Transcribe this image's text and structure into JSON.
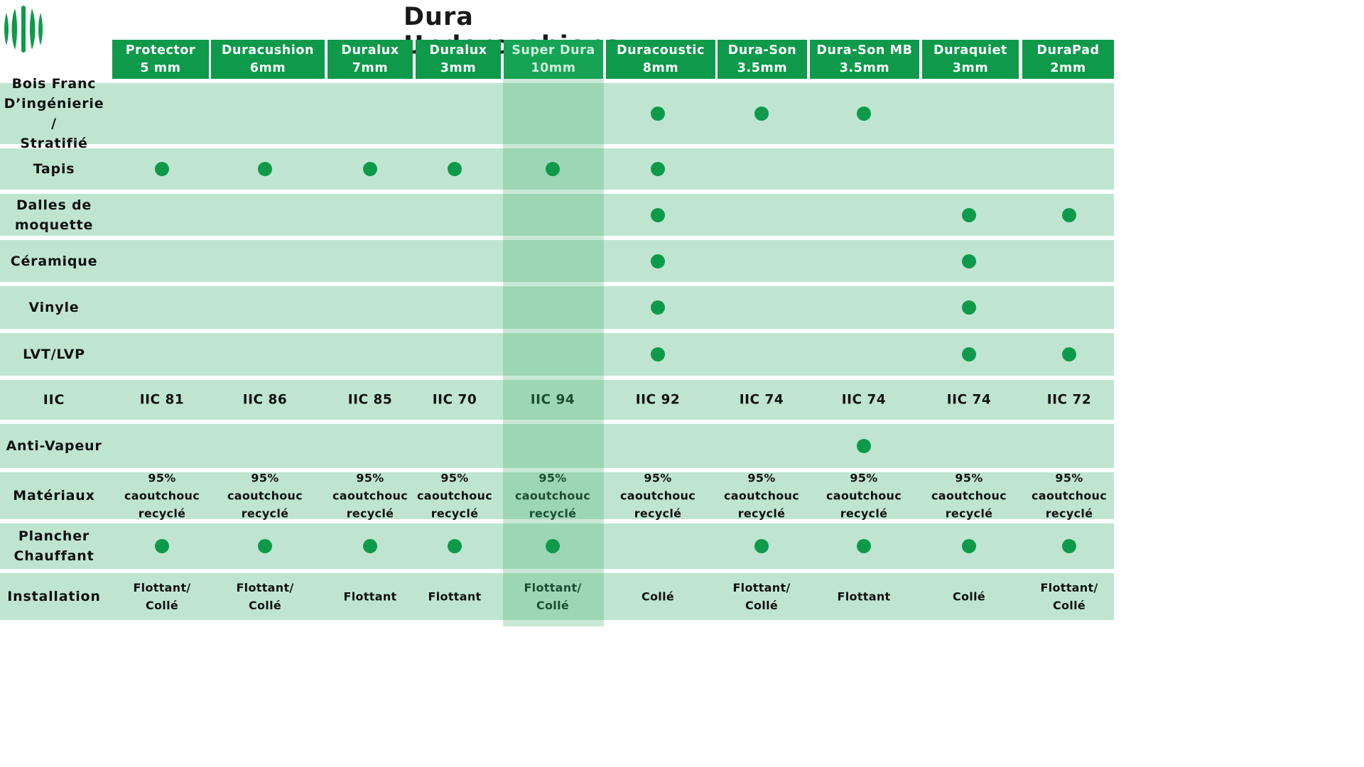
{
  "title": "Dura Undercushions",
  "colors": {
    "header_green": "#0e9a4a",
    "row_bg": "#bfe5d0",
    "dot": "#0e9a4a"
  },
  "logo_icon": "green-stripes-logo",
  "products": [
    {
      "name": "Protector",
      "spec": "5 mm"
    },
    {
      "name": "Duracushion",
      "spec": "6mm"
    },
    {
      "name": "Duralux",
      "spec": "7mm"
    },
    {
      "name": "Duralux",
      "spec": "3mm"
    },
    {
      "name": "Super Dura",
      "spec": "10mm"
    },
    {
      "name": "Duracoustic",
      "spec": "8mm"
    },
    {
      "name": "Dura-Son",
      "spec": "3.5mm"
    },
    {
      "name": "Dura-Son MB",
      "spec": "3.5mm"
    },
    {
      "name": "Duraquiet",
      "spec": "3mm"
    },
    {
      "name": "DuraPad",
      "spec": "2mm"
    }
  ],
  "rows": [
    {
      "label": [
        "Bois Franc",
        "D’ingénierie /",
        "Stratifié"
      ],
      "dots": [
        0,
        0,
        0,
        0,
        0,
        1,
        1,
        1,
        0,
        0
      ]
    },
    {
      "label": [
        "Tapis"
      ],
      "dots": [
        1,
        1,
        1,
        1,
        1,
        1,
        0,
        0,
        0,
        0
      ]
    },
    {
      "label": [
        "Dalles de",
        "moquette"
      ],
      "dots": [
        0,
        0,
        0,
        0,
        0,
        1,
        0,
        0,
        1,
        1
      ]
    },
    {
      "label": [
        "Céramique"
      ],
      "dots": [
        0,
        0,
        0,
        0,
        0,
        1,
        0,
        0,
        1,
        0
      ]
    },
    {
      "label": [
        "Vinyle"
      ],
      "dots": [
        0,
        0,
        0,
        0,
        0,
        1,
        0,
        0,
        1,
        0
      ]
    },
    {
      "label": [
        "LVT/LVP"
      ],
      "dots": [
        0,
        0,
        0,
        0,
        0,
        1,
        0,
        0,
        1,
        1
      ]
    },
    {
      "label": [
        "IIC"
      ],
      "values": [
        "IIC 81",
        "IIC 86",
        "IIC 85",
        "IIC 70",
        "IIC 94",
        "IIC 92",
        "IIC 74",
        "IIC 74",
        "IIC 74",
        "IIC 72"
      ]
    },
    {
      "label": [
        "Anti-Vapeur"
      ],
      "dots": [
        0,
        0,
        0,
        0,
        0,
        0,
        0,
        1,
        0,
        0
      ]
    },
    {
      "label": [
        "Matériaux"
      ],
      "values": [
        [
          "95%",
          "caoutchouc",
          "recyclé"
        ],
        [
          "95%",
          "caoutchouc",
          "recyclé"
        ],
        [
          "95%",
          "caoutchouc",
          "recyclé"
        ],
        [
          "95%",
          "caoutchouc",
          "recyclé"
        ],
        [
          "95%",
          "caoutchouc",
          "recyclé"
        ],
        [
          "95%",
          "caoutchouc",
          "recyclé"
        ],
        [
          "95%",
          "caoutchouc",
          "recyclé"
        ],
        [
          "95%",
          "caoutchouc",
          "recyclé"
        ],
        [
          "95%",
          "caoutchouc",
          "recyclé"
        ],
        [
          "95%",
          "caoutchouc",
          "recyclé"
        ]
      ]
    },
    {
      "label": [
        "Plancher",
        "Chauffant"
      ],
      "dots": [
        1,
        1,
        1,
        1,
        1,
        0,
        1,
        1,
        1,
        1
      ]
    },
    {
      "label": [
        "Installation"
      ],
      "values": [
        [
          "Flottant/",
          "Collé"
        ],
        [
          "Flottant/",
          "Collé"
        ],
        [
          "Flottant"
        ],
        [
          "Flottant"
        ],
        [
          "Flottant/",
          "Collé"
        ],
        [
          "Collé"
        ],
        [
          "Flottant/",
          "Collé"
        ],
        [
          "Flottant"
        ],
        [
          "Collé"
        ],
        [
          "Flottant/",
          "Collé"
        ]
      ]
    }
  ]
}
